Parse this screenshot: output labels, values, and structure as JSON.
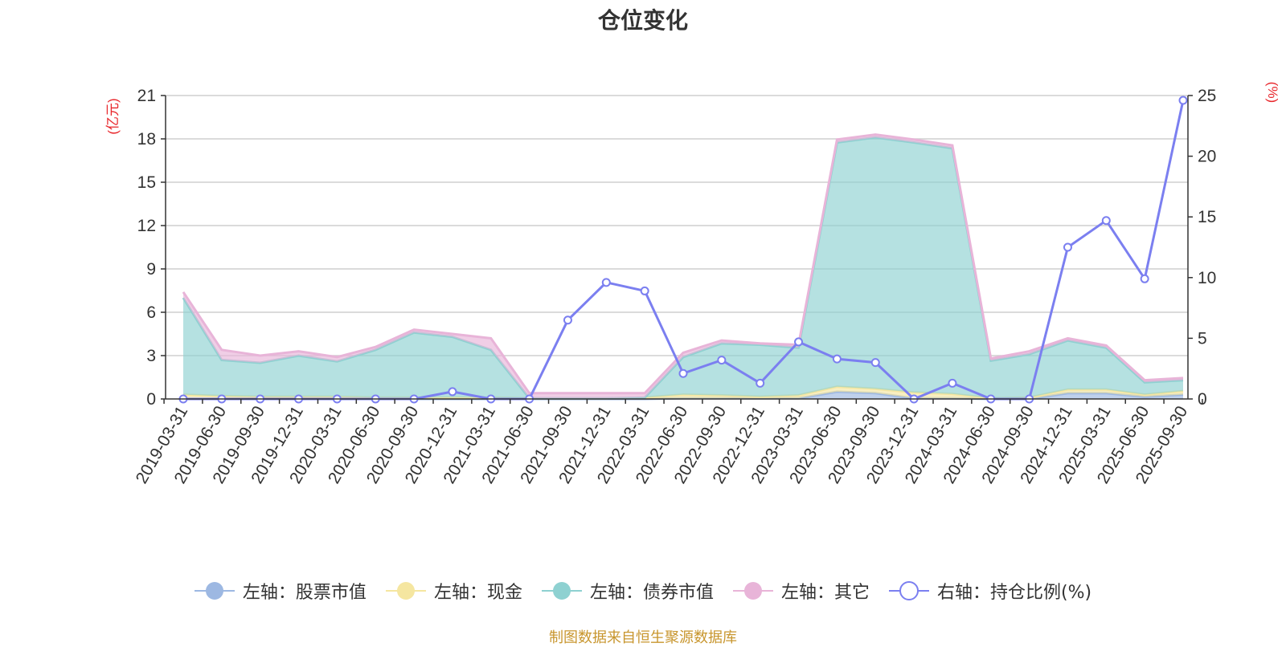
{
  "chart_data": {
    "type": "area",
    "title": "仓位变化",
    "left_axis_unit": "(亿元)",
    "right_axis_unit": "(%)",
    "categories": [
      "2019-03-31",
      "2019-06-30",
      "2019-09-30",
      "2019-12-31",
      "2020-03-31",
      "2020-06-30",
      "2020-09-30",
      "2020-12-31",
      "2021-03-31",
      "2021-06-30",
      "2021-09-30",
      "2021-12-31",
      "2022-03-31",
      "2022-06-30",
      "2022-09-30",
      "2022-12-31",
      "2023-03-31",
      "2023-06-30",
      "2023-09-30",
      "2023-12-31",
      "2024-03-31",
      "2024-06-30",
      "2024-09-30",
      "2024-12-31",
      "2025-03-31",
      "2025-06-30",
      "2025-09-30"
    ],
    "left_ylim": [
      0,
      21
    ],
    "left_ticks": [
      0,
      3,
      6,
      9,
      12,
      15,
      18,
      21
    ],
    "right_ylim": [
      0,
      25
    ],
    "right_ticks": [
      0,
      5,
      10,
      15,
      20,
      25
    ],
    "grid": true,
    "legend_position": "bottom",
    "series": [
      {
        "name": "左轴：股票市值",
        "axis": "left",
        "stacked": true,
        "color": "#9db8e2",
        "values": [
          0,
          0,
          0,
          0,
          0,
          0,
          0,
          0,
          0,
          0,
          0,
          0,
          0,
          0.05,
          0.05,
          0.05,
          0.05,
          0.5,
          0.4,
          0.05,
          0.05,
          0,
          0,
          0.4,
          0.4,
          0.15,
          0.3
        ]
      },
      {
        "name": "左轴：现金",
        "axis": "left",
        "stacked": true,
        "color": "#f5e6a0",
        "values": [
          0.3,
          0.2,
          0.15,
          0.15,
          0.15,
          0.1,
          0.1,
          0.1,
          0.1,
          0.05,
          0.05,
          0.05,
          0.1,
          0.25,
          0.2,
          0.1,
          0.2,
          0.35,
          0.3,
          0.4,
          0.3,
          0.05,
          0.1,
          0.25,
          0.25,
          0.15,
          0.25
        ]
      },
      {
        "name": "左轴：债券市值",
        "axis": "left",
        "stacked": true,
        "color": "#8ed1d1",
        "values": [
          6.7,
          2.5,
          2.35,
          2.85,
          2.45,
          3.3,
          4.5,
          4.2,
          3.3,
          0,
          0,
          0,
          0,
          2.6,
          3.6,
          3.6,
          3.3,
          16.9,
          17.4,
          17.3,
          17.0,
          2.6,
          3.0,
          3.4,
          2.9,
          0.85,
          0.75
        ]
      },
      {
        "name": "左轴：其它",
        "axis": "left",
        "stacked": true,
        "color": "#e8b4d8",
        "values": [
          0.4,
          0.7,
          0.5,
          0.3,
          0.3,
          0.2,
          0.2,
          0.2,
          0.8,
          0.35,
          0.35,
          0.35,
          0.3,
          0.3,
          0.2,
          0.1,
          0.2,
          0.2,
          0.2,
          0.2,
          0.2,
          0.15,
          0.2,
          0.15,
          0.15,
          0.15,
          0.15
        ]
      },
      {
        "name": "右轴：持仓比例(%)",
        "axis": "right",
        "type": "line",
        "color": "#7b7ff0",
        "values": [
          0,
          0,
          0,
          0,
          0,
          0,
          0,
          0.6,
          0,
          0,
          6.5,
          9.6,
          8.9,
          2.1,
          3.2,
          1.3,
          4.7,
          3.3,
          3.0,
          0,
          1.3,
          0,
          0,
          12.5,
          14.7,
          9.9,
          24.6
        ]
      }
    ]
  },
  "source_note": "制图数据来自恒生聚源数据库"
}
